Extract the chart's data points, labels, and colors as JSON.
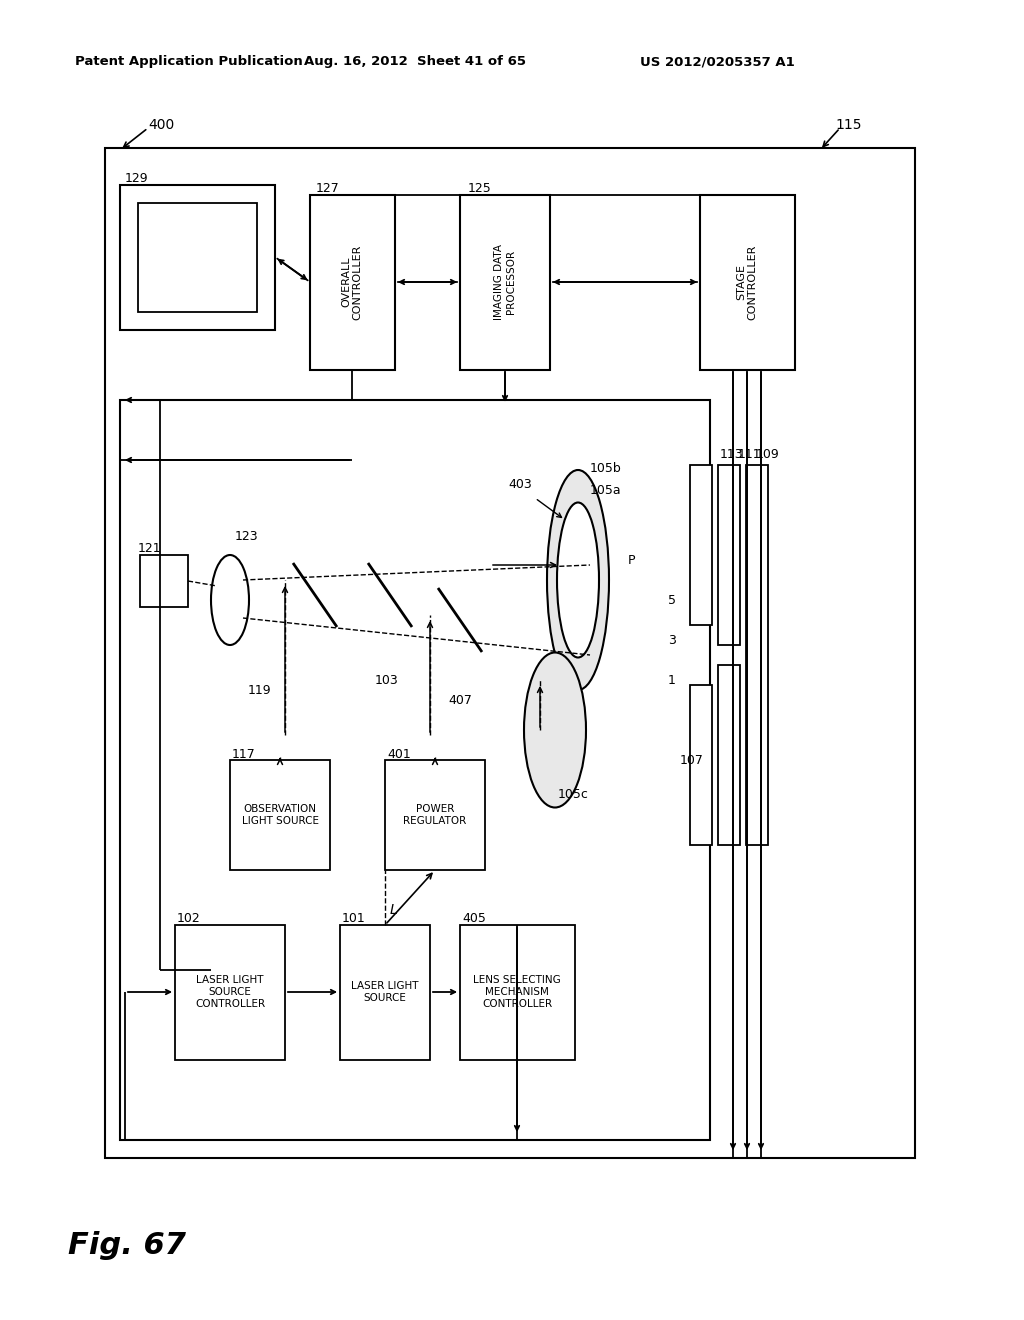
{
  "bg_color": "#ffffff",
  "header_left": "Patent Application Publication",
  "header_mid": "Aug. 16, 2012  Sheet 41 of 65",
  "header_right": "US 2012/0205357 A1",
  "fig_label": "Fig. 67"
}
